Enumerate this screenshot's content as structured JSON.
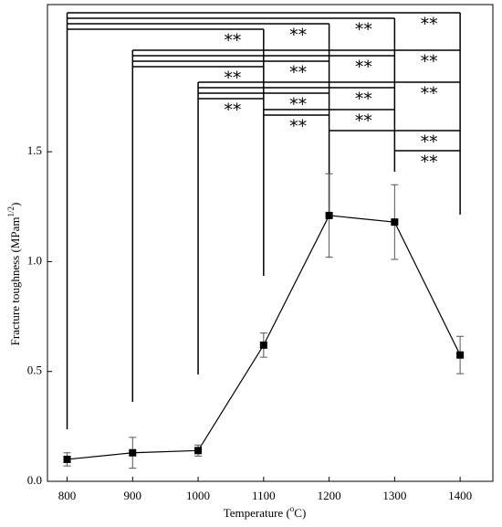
{
  "chart_data": {
    "type": "line",
    "x_label": {
      "text": "Temperature (",
      "sup": "o",
      "end": "C)"
    },
    "y_label": {
      "text": "Fracture toughness (MPam",
      "sup": "1/2",
      "end": ")"
    },
    "x": [
      800,
      900,
      1000,
      1100,
      1200,
      1300,
      1400
    ],
    "series": [
      {
        "color": "#000000",
        "values": [
          0.1,
          0.13,
          0.14,
          0.62,
          1.21,
          1.18,
          0.575
        ],
        "errors": [
          0.03,
          0.07,
          0.025,
          0.055,
          0.19,
          0.17,
          0.085
        ]
      }
    ],
    "xlim": [
      770,
      1450
    ],
    "ylim": [
      0,
      2.17
    ],
    "xticks": [
      800,
      900,
      1000,
      1100,
      1200,
      1300,
      1400
    ],
    "yticks": [
      {
        "value": 0,
        "label": "0.0"
      },
      0.5,
      {
        "value": 1,
        "label": "1.0"
      },
      1.5
    ],
    "comparisons": [
      {
        "from": 800,
        "to": 1400,
        "label": "**"
      },
      {
        "from": 800,
        "to": 1300,
        "label": "**"
      },
      {
        "from": 800,
        "to": 1200,
        "label": "**"
      },
      {
        "from": 800,
        "to": 1100,
        "label": "**"
      },
      {
        "from": 900,
        "to": 1400,
        "label": "**"
      },
      {
        "from": 900,
        "to": 1300,
        "label": "**"
      },
      {
        "from": 900,
        "to": 1200,
        "label": "**"
      },
      {
        "from": 900,
        "to": 1100,
        "label": "**"
      },
      {
        "from": 1000,
        "to": 1400,
        "label": "**"
      },
      {
        "from": 1000,
        "to": 1300,
        "label": "**"
      },
      {
        "from": 1000,
        "to": 1200,
        "label": "**"
      },
      {
        "from": 1000,
        "to": 1100,
        "label": "**"
      },
      {
        "from": 1100,
        "to": 1300,
        "label": "**"
      },
      {
        "from": 1100,
        "to": 1200,
        "label": "**"
      },
      {
        "from": 1200,
        "to": 1400,
        "label": "**"
      },
      {
        "from": 1300,
        "to": 1400,
        "label": "**"
      }
    ]
  }
}
